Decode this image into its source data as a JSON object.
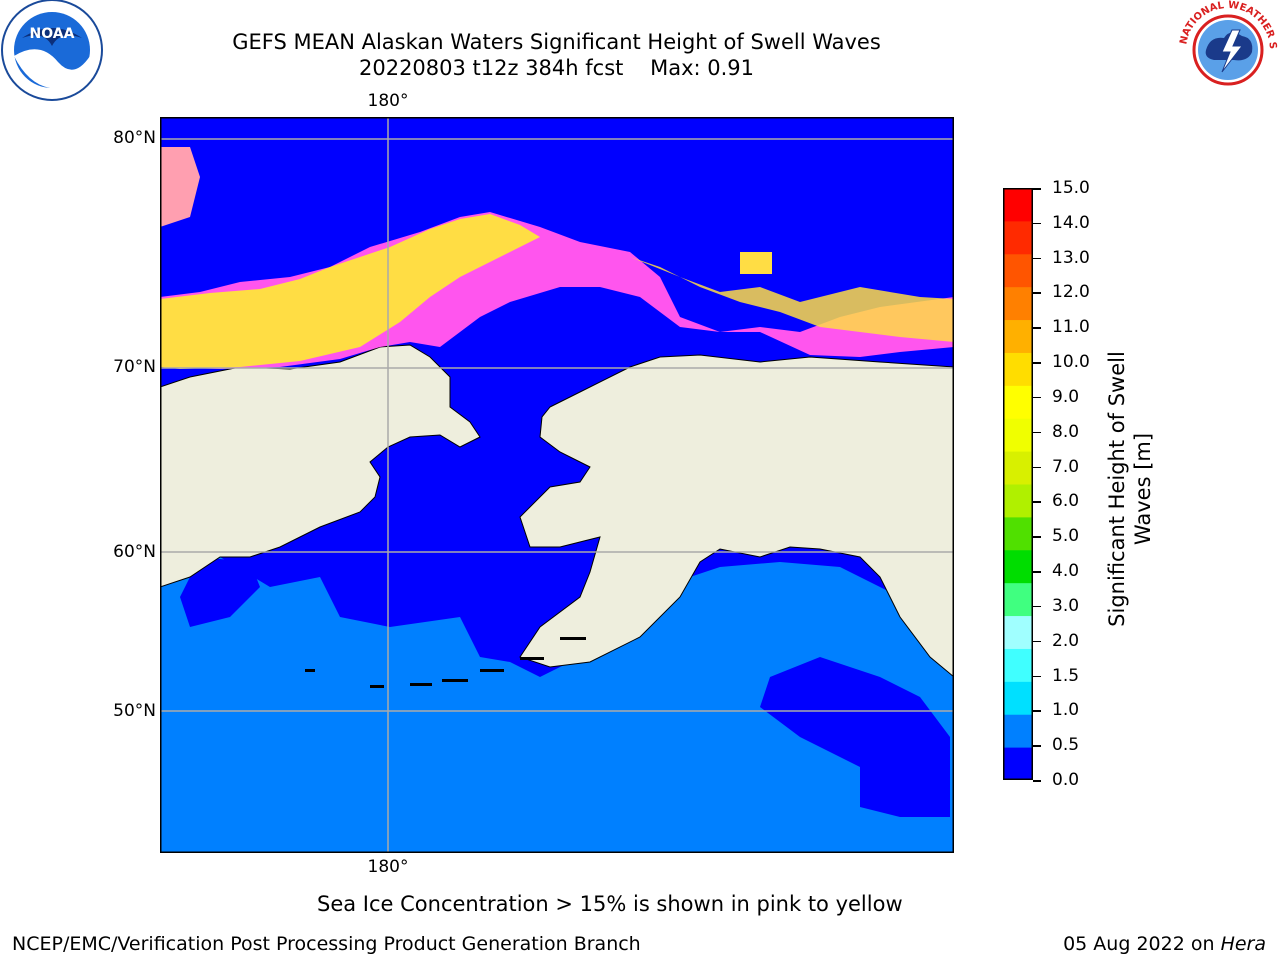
{
  "header": {
    "title_line1": "GEFS MEAN Alaskan Waters Significant Height of Swell Waves",
    "title_line2": "20220803 t12z 384h fcst    Max: 0.91"
  },
  "logos": {
    "left": {
      "name": "noaa-logo",
      "text": "NOAA"
    },
    "right": {
      "name": "nws-logo",
      "text": "NATIONAL WEATHER SERVICE"
    }
  },
  "map": {
    "lat_labels": [
      "80°N",
      "70°N",
      "60°N",
      "50°N"
    ],
    "lon_label_top": "180°",
    "lon_label_bottom": "180°",
    "colors": {
      "ocean_deep": "#0000ff",
      "ocean_mid": "#0080ff",
      "land": "#eeeedd",
      "ice_pink": "#ff55ee",
      "ice_yellow": "#ffdd44"
    }
  },
  "colorbar": {
    "title": "Significant Height of Swell\nWaves [m]",
    "ticks": [
      "15.0",
      "14.0",
      "13.0",
      "12.0",
      "11.0",
      "10.0",
      "9.0",
      "8.0",
      "7.0",
      "6.0",
      "5.0",
      "4.0",
      "3.0",
      "2.0",
      "1.5",
      "1.0",
      "0.5",
      "0.0"
    ],
    "colors": [
      "#0000ff",
      "#0080ff",
      "#00e0ff",
      "#40ffff",
      "#a0ffff",
      "#40ff80",
      "#00dd00",
      "#50e000",
      "#b0f000",
      "#d8f000",
      "#f0ff00",
      "#ffff00",
      "#ffdd00",
      "#ffb000",
      "#ff8000",
      "#ff5500",
      "#ff2a00",
      "#ff0000"
    ]
  },
  "caption": "Sea Ice Concentration > 15% is shown in pink to yellow",
  "footer": {
    "left": "NCEP/EMC/Verification Post Processing Product Generation Branch",
    "right_date": "05 Aug 2022 on",
    "right_machine": "Hera"
  }
}
